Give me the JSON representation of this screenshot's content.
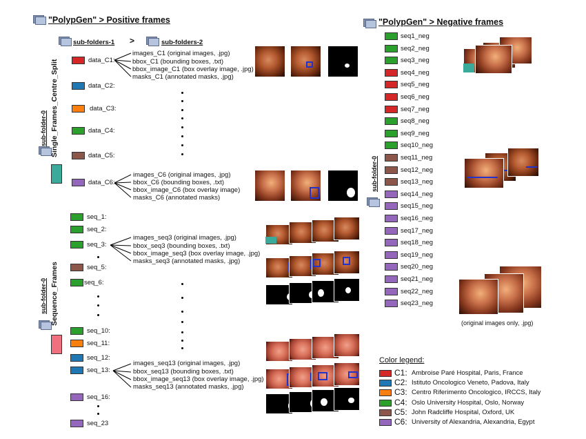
{
  "positive": {
    "title": "\"PolypGen\" > Positive frames",
    "subfolder1": "sub-folders-1",
    "arrow": ">",
    "subfolder2": "sub-folders-2",
    "subfolder0_a": "sub-folder-0",
    "single_label": "Single_Frames_Centre_Split",
    "subfolder0_b": "sub-folder-0",
    "sequence_label": "Sequence_Frames",
    "centres": [
      {
        "label": "data_C1:",
        "color": "#d62728"
      },
      {
        "label": "data_C2:",
        "color": "#1f77b4"
      },
      {
        "label": "data_C3:",
        "color": "#ff7f0e"
      },
      {
        "label": "data_C4:",
        "color": "#2ca02c"
      },
      {
        "label": "data_C5:",
        "color": "#8c564b"
      },
      {
        "label": "data_C6:",
        "color": "#9467bd"
      }
    ],
    "c1_files": [
      "images_C1 (original images, .jpg)",
      "bbox_C1 (bounding boxes, .txt)",
      "bbox_image_C1 (box overlay image, .jpg)",
      "masks_C1 (annotated masks, .jpg)"
    ],
    "c6_files": [
      "images_C6 (original images, .jpg)",
      "bbox_C6 (bounding boxes, .txt)",
      "bbox_image_C6 (box overlay image)",
      "masks_C6 (annotated masks)"
    ],
    "sequences": [
      {
        "label": "seq_1:",
        "color": "#2ca02c"
      },
      {
        "label": "seq_2:",
        "color": "#2ca02c"
      },
      {
        "label": "seq_3:",
        "color": "#2ca02c"
      },
      {
        "label": "seq_5:",
        "color": "#8c564b"
      },
      {
        "label": "seq_6:",
        "color": "#2ca02c"
      },
      {
        "label": "seq_10:",
        "color": "#2ca02c"
      },
      {
        "label": "seq_11:",
        "color": "#ff7f0e"
      },
      {
        "label": "seq_12:",
        "color": "#1f77b4"
      },
      {
        "label": "seq_13:",
        "color": "#1f77b4"
      },
      {
        "label": "seq_16:",
        "color": "#9467bd"
      },
      {
        "label": "seq_23",
        "color": "#9467bd"
      }
    ],
    "seq3_files": [
      "images_seq3 (original images, .jpg)",
      "bbox_seq3 (bounding boxes, .txt)",
      "bbox_image_seq3 (box overlay image, .jpg)",
      "masks_seq3 (annotated masks, .jpg)"
    ],
    "seq13_files": [
      "images_seq13 (original images, .jpg)",
      "bbox_seq13 (bounding boxes, .txt)",
      "bbox_image_seq13 (box overlay image, .jpg)",
      "masks_seq13 (annotated masks, .jpg)"
    ]
  },
  "negative": {
    "title": "\"PolypGen\" > Negative frames",
    "subfolder0": "sub-folder-0",
    "items": [
      {
        "label": "seq1_neg",
        "color": "#2ca02c"
      },
      {
        "label": "seq2_neg",
        "color": "#2ca02c"
      },
      {
        "label": "seq3_neg",
        "color": "#2ca02c"
      },
      {
        "label": "seq4_neg",
        "color": "#d62728"
      },
      {
        "label": "seq5_neg",
        "color": "#d62728"
      },
      {
        "label": "seq6_neg",
        "color": "#d62728"
      },
      {
        "label": "seq7_neg",
        "color": "#d62728"
      },
      {
        "label": "seq8_neg",
        "color": "#2ca02c"
      },
      {
        "label": "seq9_neg",
        "color": "#2ca02c"
      },
      {
        "label": "seq10_neg",
        "color": "#2ca02c"
      },
      {
        "label": "seq11_neg",
        "color": "#8c564b"
      },
      {
        "label": "seq12_neg",
        "color": "#8c564b"
      },
      {
        "label": "seq13_neg",
        "color": "#8c564b"
      },
      {
        "label": "seq14_neg",
        "color": "#9467bd"
      },
      {
        "label": "seq15_neg",
        "color": "#9467bd"
      },
      {
        "label": "seq16_neg",
        "color": "#9467bd"
      },
      {
        "label": "seq17_neg",
        "color": "#9467bd"
      },
      {
        "label": "seq18_neg",
        "color": "#9467bd"
      },
      {
        "label": "seq19_neg",
        "color": "#9467bd"
      },
      {
        "label": "seq20_neg",
        "color": "#9467bd"
      },
      {
        "label": "seq21_neg",
        "color": "#9467bd"
      },
      {
        "label": "seq22_neg",
        "color": "#9467bd"
      },
      {
        "label": "seq23_neg",
        "color": "#9467bd"
      }
    ],
    "caption": "(original images only, .jpg)"
  },
  "legend": {
    "title": "Color legend:",
    "items": [
      {
        "code": "C1:",
        "text": "Ambroise Paré Hospital, Paris, France",
        "color": "#d62728"
      },
      {
        "code": "C2:",
        "text": "Istituto Oncologico Veneto, Padova, Italy",
        "color": "#1f77b4"
      },
      {
        "code": "C3:",
        "text": "Centro Riferimento Oncologico, IRCCS, Italy",
        "color": "#ff7f0e"
      },
      {
        "code": "C4:",
        "text": "Oslo University Hospital, Oslo, Norway",
        "color": "#2ca02c"
      },
      {
        "code": "C5:",
        "text": "John Radcliffe Hospital, Oxford, UK",
        "color": "#8c564b"
      },
      {
        "code": "C6:",
        "text": "University of Alexandria, Alexandria, Egypt",
        "color": "#9467bd"
      }
    ]
  },
  "decor": {
    "single_box_color": "#3aaa9a",
    "sequence_box_color": "#f07080"
  }
}
